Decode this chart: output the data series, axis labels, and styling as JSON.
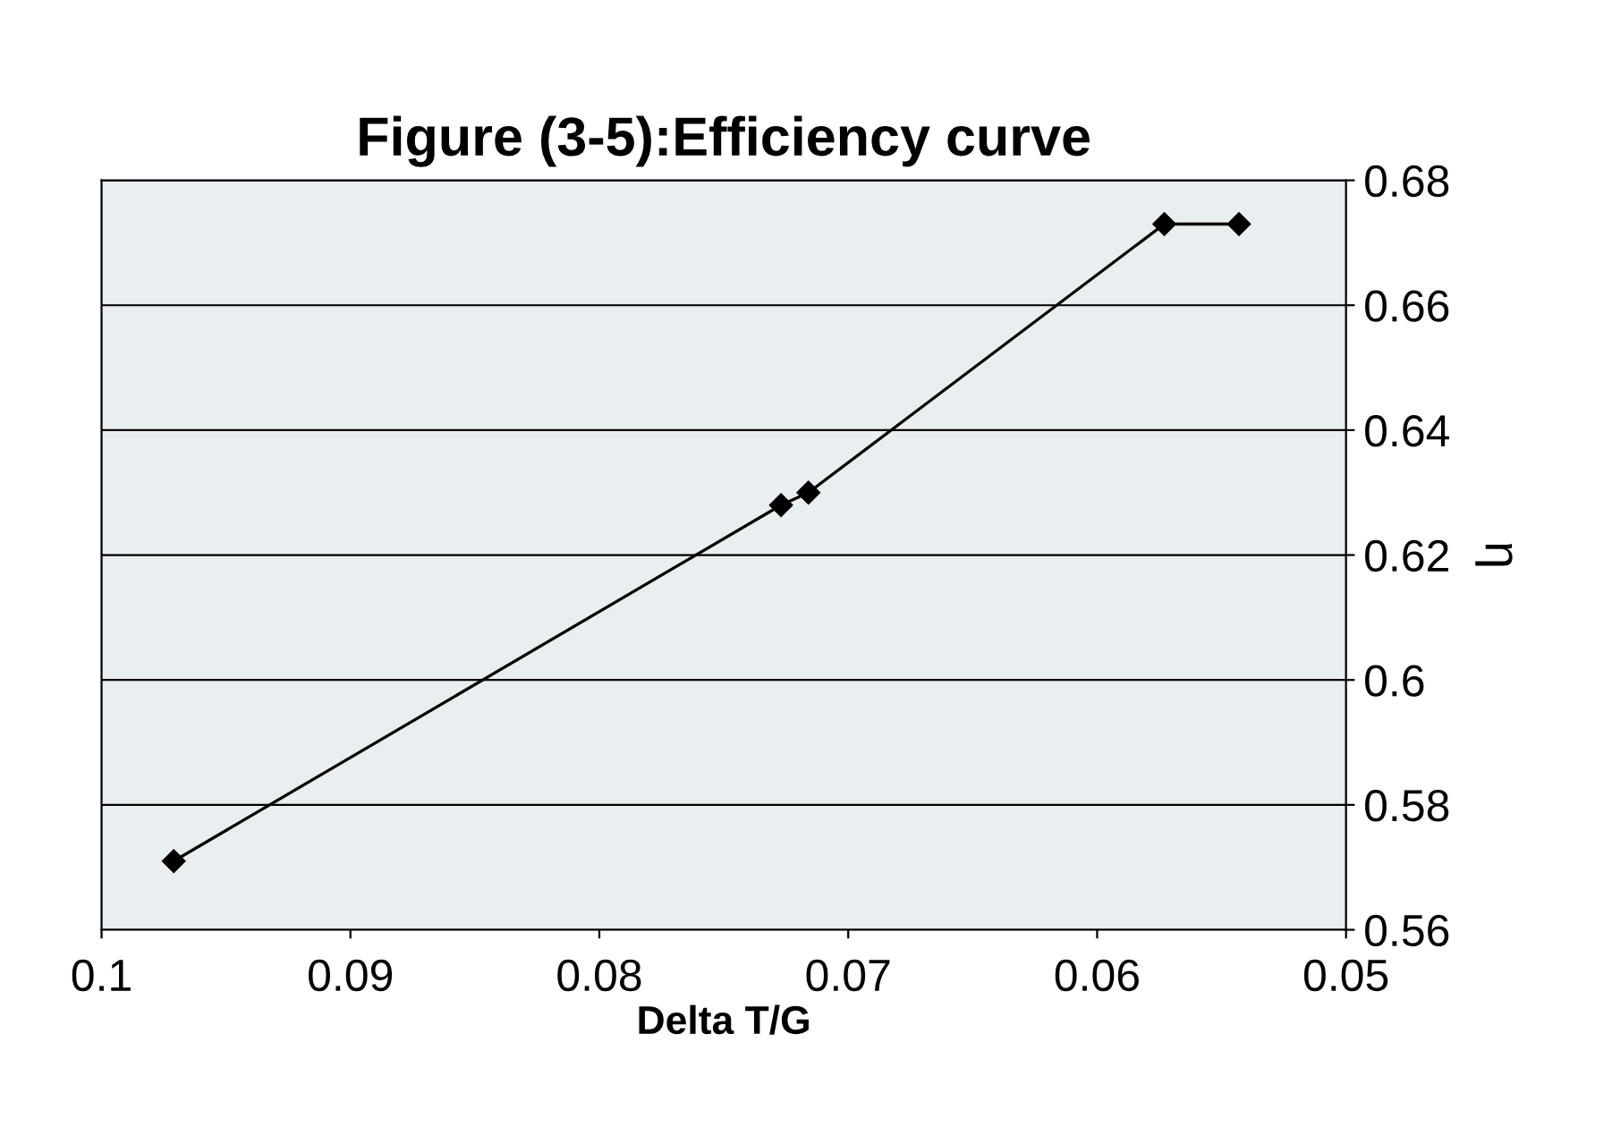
{
  "chart_data": {
    "type": "line",
    "title": "Figure (3-5):Efficiency curve",
    "xlabel": "Delta T/G",
    "ylabel": "η",
    "x": [
      0.0971,
      0.0727,
      0.0716,
      0.0573,
      0.0543
    ],
    "series": [
      {
        "color": "#000000",
        "values": [
          0.571,
          0.628,
          0.63,
          0.673,
          0.673
        ]
      }
    ],
    "xlim": [
      0.1,
      0.05
    ],
    "xticks": [
      0.1,
      0.09,
      0.08,
      0.07,
      0.06,
      0.05
    ],
    "ylim": [
      0.56,
      0.68
    ],
    "yticks": [
      0.56,
      0.58,
      0.6,
      0.62,
      0.64,
      0.66,
      0.68
    ],
    "grid": "y",
    "marker": "diamond",
    "line_style": "solid",
    "legend": false
  }
}
